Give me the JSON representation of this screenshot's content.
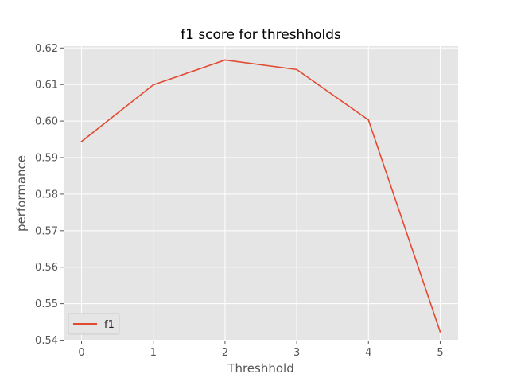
{
  "chart_data": {
    "type": "line",
    "title": "f1 score for threshholds",
    "xlabel": "Threshhold",
    "ylabel": "performance",
    "x": [
      0,
      1,
      2,
      3,
      4,
      5
    ],
    "series": [
      {
        "name": "f1",
        "values": [
          0.5944,
          0.6099,
          0.6167,
          0.6141,
          0.6003,
          0.5423
        ]
      }
    ],
    "xlim": [
      -0.25,
      5.25
    ],
    "ylim": [
      0.5399,
      0.6205
    ],
    "xticks": [
      0,
      1,
      2,
      3,
      4,
      5
    ],
    "yticks": [
      0.54,
      0.55,
      0.56,
      0.57,
      0.58,
      0.59,
      0.6,
      0.61,
      0.62
    ],
    "xtick_labels": [
      "0",
      "1",
      "2",
      "3",
      "4",
      "5"
    ],
    "ytick_labels": [
      "0.54",
      "0.55",
      "0.56",
      "0.57",
      "0.58",
      "0.59",
      "0.60",
      "0.61",
      "0.62"
    ],
    "grid": true,
    "legend_position": "lower-left",
    "colors": {
      "plot_background": "#e5e5e5",
      "grid": "#ffffff",
      "series": [
        "#e24a33"
      ]
    }
  }
}
